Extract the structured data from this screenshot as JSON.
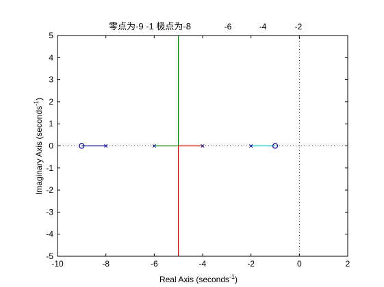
{
  "title_main": "零点为-9 -1  极点为-8",
  "title_extra_ticks": [
    "-6",
    "-4",
    "-2"
  ],
  "chart_data": {
    "type": "root-locus",
    "title": "零点为-9 -1  极点为-8",
    "xlabel": "Real Axis (seconds",
    "xlabel_sup": "-1",
    "xlabel_close": ")",
    "ylabel": "Imaginary Axis (seconds",
    "ylabel_sup": "-1",
    "ylabel_close": ")",
    "xlim": [
      -10,
      2
    ],
    "ylim": [
      -5,
      5
    ],
    "xticks": [
      -10,
      -8,
      -6,
      -4,
      -2,
      0,
      2
    ],
    "yticks": [
      -5,
      -4,
      -3,
      -2,
      -1,
      0,
      1,
      2,
      3,
      4,
      5
    ],
    "zeros": [
      [
        -9,
        0
      ],
      [
        -1,
        0
      ]
    ],
    "poles": [
      [
        -8,
        0
      ],
      [
        -6,
        0
      ],
      [
        -4,
        0
      ],
      [
        -2,
        0
      ]
    ],
    "branches": [
      {
        "color": "#00008b",
        "points": [
          [
            -8,
            0
          ],
          [
            -9,
            0
          ]
        ]
      },
      {
        "color": "#008000",
        "points": [
          [
            -6,
            0
          ],
          [
            -5,
            0
          ],
          [
            -5,
            5
          ]
        ]
      },
      {
        "color": "#cc0000",
        "points": [
          [
            -4,
            0
          ],
          [
            -5,
            0
          ],
          [
            -5,
            -5
          ]
        ]
      },
      {
        "color": "#00bfbf",
        "points": [
          [
            -2,
            0
          ],
          [
            -1,
            0
          ]
        ]
      }
    ],
    "reference_lines": [
      {
        "orientation": "vertical",
        "value": 0,
        "style": "dotted"
      },
      {
        "orientation": "horizontal",
        "value": 0,
        "style": "dotted"
      }
    ]
  }
}
